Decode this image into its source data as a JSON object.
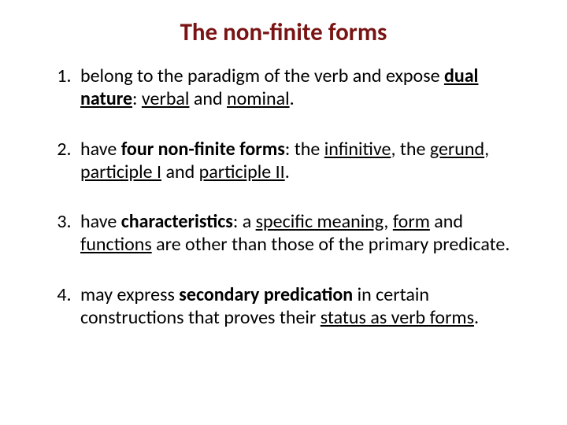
{
  "title": "The non-finite forms",
  "points": [
    {
      "prefix": "belong to the paradigm of the verb and expose ",
      "seg1": "dual nature",
      "mid1": ": ",
      "seg2": "verbal",
      "mid2": " and ",
      "seg3": "nominal",
      "suffix": "."
    },
    {
      "prefix": "have ",
      "seg1": "four non-finite forms",
      "mid1": ": the ",
      "seg2": "infinitive",
      "mid2": ", the ",
      "seg3": "gerund",
      "mid3": ", ",
      "seg4": "participle I",
      "mid4": " and ",
      "seg5": "participle II",
      "suffix": "."
    },
    {
      "prefix": "have ",
      "seg1": "characteristics",
      "mid1": ": a ",
      "seg2": "specific meaning",
      "mid2": ", ",
      "seg3": "form",
      "mid3": " and ",
      "seg4": "functions",
      "suffix": " are other than those of the primary predicate."
    },
    {
      "prefix": "may express ",
      "seg1": "secondary predication",
      "mid1": " in certain constructions that proves their ",
      "seg2": "status as verb forms",
      "suffix": "."
    }
  ]
}
